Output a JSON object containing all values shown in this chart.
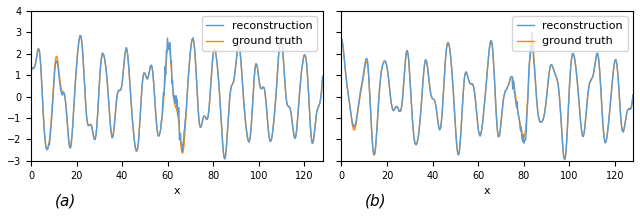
{
  "xlim": [
    0,
    128
  ],
  "ylim": [
    -3,
    4
  ],
  "xlabel": "x",
  "yticks": [
    -3,
    -2,
    -1,
    0,
    1,
    2,
    3,
    4
  ],
  "xticks": [
    0,
    20,
    40,
    60,
    80,
    100,
    120
  ],
  "reconstruction_color": "#5B9BD5",
  "ground_truth_color": "#FF8C00",
  "reconstruction_label": "reconstruction",
  "ground_truth_label": "ground truth",
  "panel_a_label": "(a)",
  "panel_b_label": "(b)",
  "line_width": 1.0,
  "legend_fontsize": 8,
  "tick_fontsize": 7,
  "label_fontsize": 8,
  "n_points": 512,
  "seed_a": 42,
  "seed_b": 99
}
